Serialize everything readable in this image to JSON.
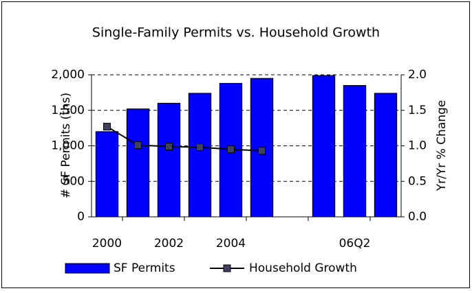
{
  "chart_data": {
    "type": "bar",
    "title": "Single-Family Permits vs. Household Growth",
    "y_label": "# SF Permits (ths)",
    "y2_label": "Yr/Yr % Change",
    "categories": [
      "2000",
      null,
      "2002",
      null,
      "2004",
      null,
      null,
      null,
      "06Q2",
      null
    ],
    "series": [
      {
        "name": "SF Permits",
        "type": "bar",
        "color": "#0000ff",
        "values": [
          1200,
          1520,
          1600,
          1740,
          1880,
          1950,
          null,
          1990,
          1850,
          1740
        ]
      },
      {
        "name": "Household Growth",
        "type": "line",
        "axis": "y2",
        "color": "#000000",
        "marker_color": "#404060",
        "values": [
          1.27,
          1.01,
          0.99,
          0.98,
          0.95,
          0.93,
          null,
          null,
          null,
          null
        ]
      }
    ],
    "ylim": [
      0,
      2000
    ],
    "yticks": [
      0,
      500,
      {
        "value": 1000,
        "label": "1,000"
      },
      {
        "value": 1500,
        "label": "1,500"
      },
      {
        "value": 2000,
        "label": "2,000"
      }
    ],
    "y2lim": [
      0,
      2
    ],
    "y2ticks": [
      {
        "value": 0,
        "label": "0.0"
      },
      {
        "value": 0.5,
        "label": "0.5"
      },
      {
        "value": 1,
        "label": "1.0"
      },
      {
        "value": 1.5,
        "label": "1.5"
      },
      {
        "value": 2,
        "label": "2.0"
      }
    ],
    "grid": true,
    "legend": "bottom"
  }
}
